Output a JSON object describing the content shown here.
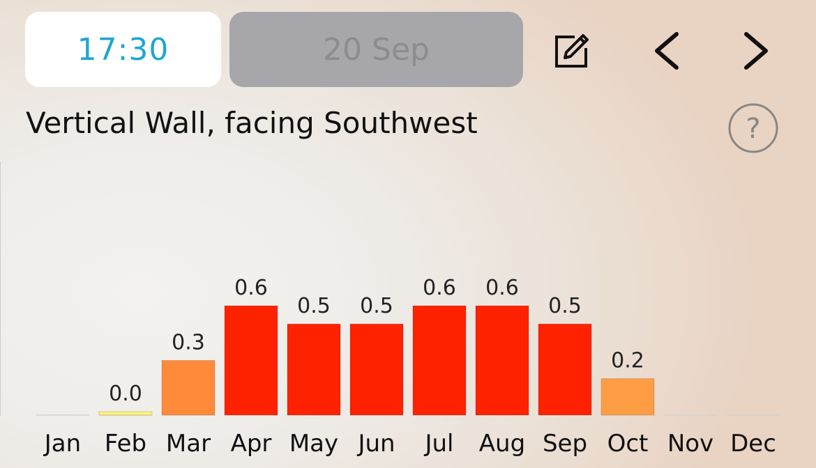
{
  "header": {
    "time": "17:30",
    "date": "20 Sep"
  },
  "icons": {
    "edit": "edit-icon",
    "prev": "chevron-left-icon",
    "next": "chevron-right-icon",
    "help": "help-icon"
  },
  "title": "Vertical Wall, facing Southwest",
  "chart_data": {
    "type": "bar",
    "categories": [
      "Jan",
      "Feb",
      "Mar",
      "Apr",
      "May",
      "Jun",
      "Jul",
      "Aug",
      "Sep",
      "Oct",
      "Nov",
      "Dec"
    ],
    "values": [
      null,
      0.0,
      0.3,
      0.6,
      0.5,
      0.5,
      0.6,
      0.6,
      0.5,
      0.2,
      null,
      null
    ],
    "value_labels": [
      "",
      "0.0",
      "0.3",
      "0.6",
      "0.5",
      "0.5",
      "0.6",
      "0.6",
      "0.5",
      "0.2",
      "",
      ""
    ],
    "colors": [
      "",
      "#fff27a",
      "#ff8a3a",
      "#ff2200",
      "#ff2200",
      "#ff2200",
      "#ff2200",
      "#ff2200",
      "#ff2200",
      "#ff9d44",
      "",
      ""
    ],
    "ylim": [
      0,
      0.65
    ],
    "grid": false,
    "legend": "none"
  }
}
